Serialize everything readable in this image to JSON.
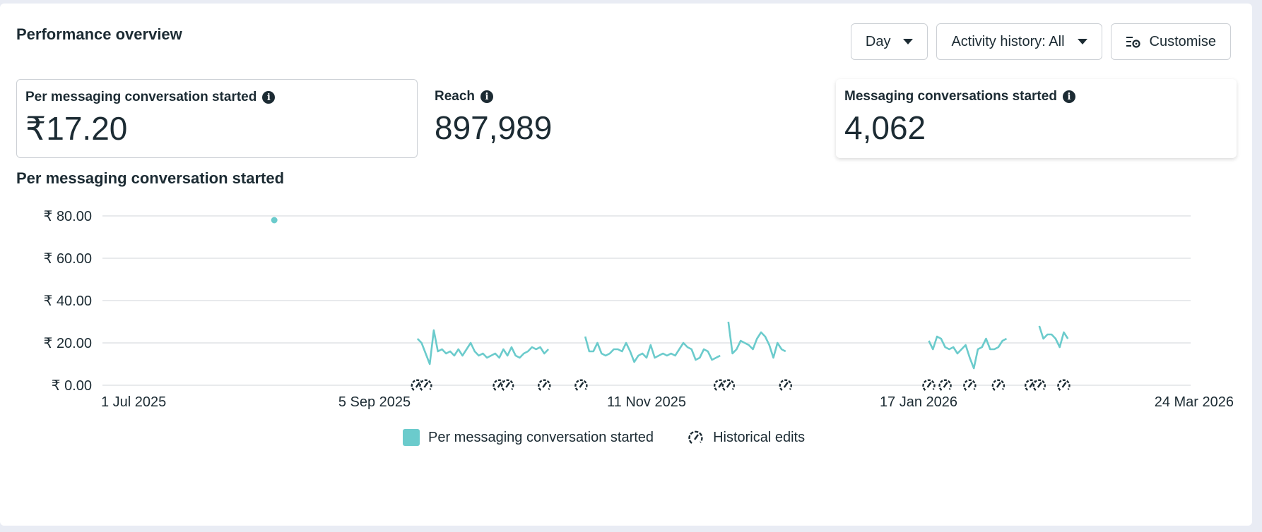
{
  "header": {
    "title": "Performance overview",
    "day_label": "Day",
    "activity_label": "Activity history: All",
    "customise_label": "Customise"
  },
  "metrics": [
    {
      "label": "Per messaging conversation started",
      "value": "₹17.20"
    },
    {
      "label": "Reach",
      "value": "897,989"
    },
    {
      "label": "Messaging conversations started",
      "value": "4,062"
    }
  ],
  "colors": {
    "series": "#6bcbcc",
    "text": "#1c2b33",
    "grid": "#dadde1"
  },
  "chart_data": {
    "type": "line",
    "title": "Per messaging conversation started",
    "y_ticks": [
      "₹ 80.00",
      "₹ 60.00",
      "₹ 40.00",
      "₹ 20.00",
      "₹ 0.00"
    ],
    "ylim": [
      0,
      80
    ],
    "x_ticks": [
      "1 Jul 2025",
      "5 Sep 2025",
      "11 Nov 2025",
      "17 Jan 2026",
      "24 Mar 2026"
    ],
    "x_start": "2025-07-01",
    "x_end": "2026-03-24",
    "grid": true,
    "legend_position": "bottom-center",
    "series": [
      {
        "name": "Per messaging conversation started",
        "segments": [
          [
            [
              "2025-08-12",
              78
            ]
          ],
          [
            [
              "2025-09-16",
              22
            ],
            [
              "2025-09-17",
              20
            ],
            [
              "2025-09-18",
              15
            ],
            [
              "2025-09-19",
              10
            ],
            [
              "2025-09-20",
              26
            ],
            [
              "2025-09-21",
              16
            ],
            [
              "2025-09-22",
              17
            ],
            [
              "2025-09-23",
              15
            ],
            [
              "2025-09-24",
              16
            ],
            [
              "2025-09-25",
              14
            ],
            [
              "2025-09-26",
              17
            ],
            [
              "2025-09-27",
              14
            ],
            [
              "2025-09-28",
              17
            ],
            [
              "2025-09-29",
              20
            ],
            [
              "2025-09-30",
              16
            ],
            [
              "2025-10-01",
              14
            ],
            [
              "2025-10-02",
              15
            ],
            [
              "2025-10-03",
              13
            ],
            [
              "2025-10-04",
              14
            ],
            [
              "2025-10-05",
              15
            ],
            [
              "2025-10-06",
              13
            ],
            [
              "2025-10-07",
              17
            ],
            [
              "2025-10-08",
              14
            ],
            [
              "2025-10-09",
              18
            ],
            [
              "2025-10-10",
              14
            ],
            [
              "2025-10-11",
              13
            ],
            [
              "2025-10-12",
              15
            ],
            [
              "2025-10-13",
              16
            ],
            [
              "2025-10-14",
              18
            ],
            [
              "2025-10-15",
              17
            ],
            [
              "2025-10-16",
              18
            ],
            [
              "2025-10-17",
              15
            ],
            [
              "2025-10-18",
              17
            ]
          ],
          [
            [
              "2025-10-27",
              23
            ],
            [
              "2025-10-28",
              16
            ],
            [
              "2025-10-29",
              16
            ],
            [
              "2025-10-30",
              20
            ],
            [
              "2025-10-31",
              15
            ],
            [
              "2025-11-01",
              14
            ],
            [
              "2025-11-02",
              15
            ],
            [
              "2025-11-03",
              17
            ],
            [
              "2025-11-04",
              17
            ],
            [
              "2025-11-05",
              16
            ],
            [
              "2025-11-06",
              20
            ],
            [
              "2025-11-07",
              16
            ],
            [
              "2025-11-08",
              11
            ],
            [
              "2025-11-09",
              14
            ],
            [
              "2025-11-10",
              15
            ],
            [
              "2025-11-11",
              13
            ],
            [
              "2025-11-12",
              19
            ],
            [
              "2025-11-13",
              13
            ],
            [
              "2025-11-14",
              14
            ],
            [
              "2025-11-15",
              15
            ],
            [
              "2025-11-16",
              14
            ],
            [
              "2025-11-17",
              15
            ],
            [
              "2025-11-18",
              14
            ],
            [
              "2025-11-19",
              17
            ],
            [
              "2025-11-20",
              20
            ],
            [
              "2025-11-21",
              18
            ],
            [
              "2025-11-22",
              17
            ],
            [
              "2025-11-23",
              12
            ],
            [
              "2025-11-24",
              13
            ],
            [
              "2025-11-25",
              17
            ],
            [
              "2025-11-26",
              16
            ],
            [
              "2025-11-27",
              12
            ],
            [
              "2025-11-28",
              13
            ],
            [
              "2025-11-29",
              14
            ]
          ],
          [
            [
              "2025-12-01",
              30
            ],
            [
              "2025-12-02",
              15
            ],
            [
              "2025-12-03",
              17
            ],
            [
              "2025-12-04",
              21
            ],
            [
              "2025-12-05",
              20
            ],
            [
              "2025-12-06",
              19
            ],
            [
              "2025-12-07",
              17
            ],
            [
              "2025-12-08",
              22
            ],
            [
              "2025-12-09",
              25
            ],
            [
              "2025-12-10",
              23
            ],
            [
              "2025-12-11",
              19
            ],
            [
              "2025-12-12",
              13
            ],
            [
              "2025-12-13",
              20
            ],
            [
              "2025-12-14",
              17
            ],
            [
              "2025-12-15",
              16
            ]
          ],
          [
            [
              "2026-01-19",
              21
            ],
            [
              "2026-01-20",
              17
            ],
            [
              "2026-01-21",
              23
            ],
            [
              "2026-01-22",
              22
            ],
            [
              "2026-01-23",
              18
            ],
            [
              "2026-01-24",
              17
            ],
            [
              "2026-01-25",
              18
            ],
            [
              "2026-01-26",
              15
            ],
            [
              "2026-01-27",
              17
            ],
            [
              "2026-01-28",
              19
            ],
            [
              "2026-01-29",
              13
            ],
            [
              "2026-01-30",
              8
            ],
            [
              "2026-01-31",
              17
            ],
            [
              "2026-02-01",
              18
            ],
            [
              "2026-02-02",
              22
            ],
            [
              "2026-02-03",
              17
            ],
            [
              "2026-02-04",
              17
            ],
            [
              "2026-02-05",
              18
            ],
            [
              "2026-02-06",
              21
            ],
            [
              "2026-02-07",
              22
            ]
          ],
          [
            [
              "2026-02-15",
              28
            ],
            [
              "2026-02-16",
              22
            ],
            [
              "2026-02-17",
              24
            ],
            [
              "2026-02-18",
              24
            ],
            [
              "2026-02-19",
              22
            ],
            [
              "2026-02-20",
              18
            ],
            [
              "2026-02-21",
              25
            ],
            [
              "2026-02-22",
              22
            ]
          ]
        ]
      }
    ],
    "historical_edits": {
      "name": "Historical edits",
      "dates": [
        "2025-09-16",
        "2025-09-18",
        "2025-10-06",
        "2025-10-08",
        "2025-10-17",
        "2025-10-26",
        "2025-11-29",
        "2025-12-01",
        "2025-12-15",
        "2026-01-19",
        "2026-01-23",
        "2026-01-29",
        "2026-02-05",
        "2026-02-13",
        "2026-02-15",
        "2026-02-21"
      ]
    }
  }
}
